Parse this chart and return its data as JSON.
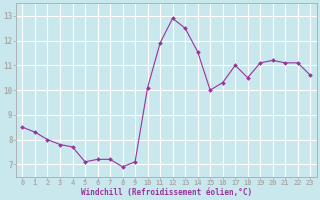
{
  "x": [
    0,
    1,
    2,
    3,
    4,
    5,
    6,
    7,
    8,
    9,
    10,
    11,
    12,
    13,
    14,
    15,
    16,
    17,
    18,
    19,
    20,
    21,
    22,
    23
  ],
  "y": [
    8.5,
    8.3,
    8.0,
    7.8,
    7.7,
    7.1,
    7.2,
    7.2,
    6.9,
    7.1,
    10.1,
    11.9,
    12.9,
    12.5,
    11.55,
    10.0,
    10.3,
    11.0,
    10.5,
    11.1,
    11.2,
    11.1,
    11.1,
    10.6
  ],
  "line_color": "#993399",
  "marker_color": "#993399",
  "bg_color": "#c8e8ee",
  "grid_color": "#ffffff",
  "xlabel": "Windchill (Refroidissement éolien,°C)",
  "xlabel_color": "#993399",
  "tick_color": "#993399",
  "spine_color": "#aaaaaa",
  "ylim": [
    6.5,
    13.5
  ],
  "xlim": [
    -0.5,
    23.5
  ],
  "yticks": [
    7,
    8,
    9,
    10,
    11,
    12,
    13
  ],
  "xticks": [
    0,
    1,
    2,
    3,
    4,
    5,
    6,
    7,
    8,
    9,
    10,
    11,
    12,
    13,
    14,
    15,
    16,
    17,
    18,
    19,
    20,
    21,
    22,
    23
  ],
  "xtick_labels": [
    "0",
    "1",
    "2",
    "3",
    "4",
    "5",
    "6",
    "7",
    "8",
    "9",
    "10",
    "11",
    "12",
    "13",
    "14",
    "15",
    "16",
    "17",
    "18",
    "19",
    "20",
    "21",
    "22",
    "23"
  ],
  "ytick_labels": [
    "7",
    "8",
    "9",
    "10",
    "11",
    "12",
    "13"
  ],
  "xlabel_fontsize": 5.5,
  "tick_fontsize": 5.0
}
